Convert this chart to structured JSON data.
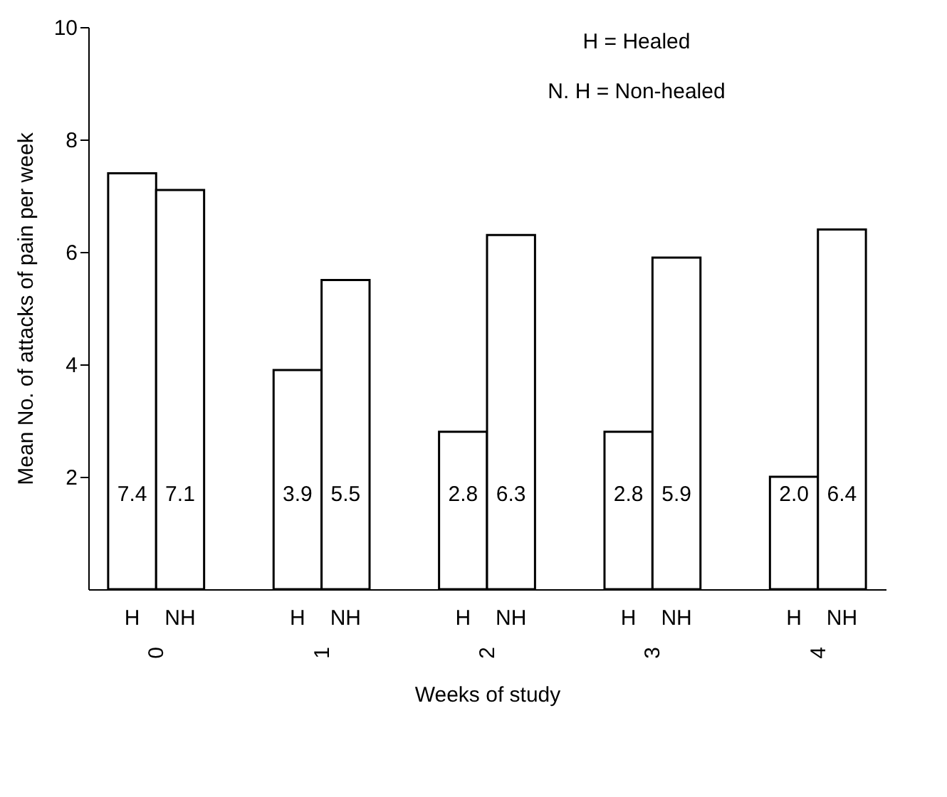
{
  "chart_data": {
    "type": "bar",
    "xlabel": "Weeks of study",
    "ylabel": "Mean No. of attacks of pain per week",
    "categories": [
      "0",
      "1",
      "2",
      "3",
      "4"
    ],
    "series": [
      {
        "name": "H",
        "color": "#ffffff",
        "values": [
          7.4,
          3.9,
          2.8,
          2.8,
          2.0
        ]
      },
      {
        "name": "NH",
        "color": "#ffffff",
        "values": [
          7.1,
          5.5,
          6.3,
          5.9,
          6.4
        ]
      }
    ],
    "value_labels": [
      [
        "7.4",
        "3.9",
        "2.8",
        "2.8",
        "2.0"
      ],
      [
        "7.1",
        "5.5",
        "6.3",
        "5.9",
        "6.4"
      ]
    ],
    "ylim": [
      0,
      10
    ],
    "yticks": [
      2,
      4,
      6,
      8,
      10
    ],
    "grid": false,
    "legend": false,
    "annotations": [
      "H = Healed",
      "N. H = Non-healed"
    ]
  }
}
